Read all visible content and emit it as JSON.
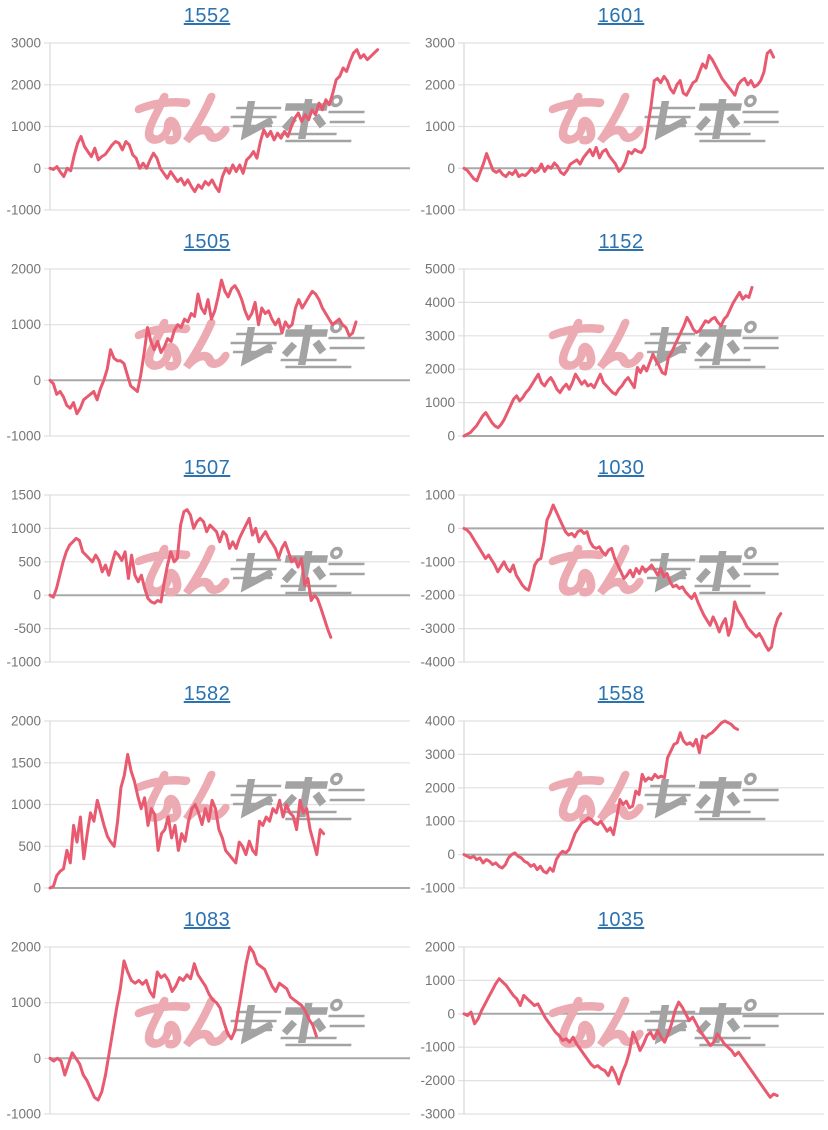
{
  "page": {
    "background": "#ffffff"
  },
  "watermark": {
    "text": "みんレポ",
    "pink_color": "#ecaab2",
    "gray_color": "#a3a3a3"
  },
  "style": {
    "line_color": "#e85a70",
    "title_color": "#2a72b0",
    "grid_color": "#e0e0e0",
    "zero_line_color": "#a8a8a8",
    "axis_color": "#d8d8d8",
    "tick_label_color": "#757575"
  },
  "chart_data": [
    {
      "type": "line",
      "title": "1552",
      "ylim": [
        -1000,
        3000
      ],
      "yticks": [
        3000,
        2000,
        1000,
        0,
        -1000
      ],
      "span": 0.91,
      "grid": true,
      "x_axis_labels": false,
      "values": [
        0,
        -30,
        40,
        -90,
        -200,
        0,
        -60,
        300,
        600,
        760,
        520,
        400,
        280,
        480,
        200,
        280,
        330,
        440,
        560,
        640,
        600,
        440,
        640,
        560,
        320,
        240,
        0,
        120,
        0,
        200,
        360,
        240,
        0,
        -120,
        -240,
        -80,
        -200,
        -320,
        -240,
        -400,
        -280,
        -440,
        -560,
        -400,
        -480,
        -320,
        -400,
        -280,
        -440,
        -560,
        -200,
        0,
        -120,
        80,
        -80,
        80,
        -120,
        200,
        280,
        400,
        240,
        640,
        920,
        760,
        880,
        680,
        840,
        720,
        880,
        760,
        1000,
        1200,
        1320,
        1120,
        1280,
        1160,
        1400,
        1280,
        1560,
        1400,
        1640,
        1520,
        1800,
        2120,
        2200,
        2400,
        2320,
        2560,
        2760,
        2840,
        2640,
        2720,
        2600,
        2680,
        2760,
        2840
      ]
    },
    {
      "type": "line",
      "title": "1601",
      "ylim": [
        -1000,
        3000
      ],
      "yticks": [
        3000,
        2000,
        1000,
        0,
        -1000
      ],
      "span": 0.86,
      "grid": true,
      "x_axis_labels": false,
      "values": [
        0,
        -50,
        -150,
        -250,
        -300,
        -100,
        100,
        350,
        150,
        -50,
        -100,
        -50,
        -150,
        -200,
        -100,
        -150,
        -50,
        -200,
        -150,
        -175,
        -100,
        0,
        -100,
        -50,
        100,
        -75,
        50,
        0,
        125,
        50,
        -100,
        -150,
        -50,
        100,
        150,
        200,
        100,
        250,
        350,
        450,
        300,
        500,
        250,
        400,
        450,
        300,
        200,
        100,
        -75,
        0,
        150,
        400,
        350,
        450,
        400,
        375,
        500,
        1000,
        1500,
        2100,
        2150,
        2050,
        2200,
        2100,
        1900,
        1800,
        2000,
        2100,
        1800,
        1750,
        1900,
        2050,
        2100,
        2300,
        2500,
        2400,
        2700,
        2600,
        2450,
        2300,
        2150,
        2050,
        1950,
        1850,
        1750,
        2000,
        2100,
        2150,
        2000,
        2100,
        1950,
        2000,
        2100,
        2300,
        2750,
        2820,
        2660
      ]
    },
    {
      "type": "line",
      "title": "1505",
      "ylim": [
        -1000,
        2000
      ],
      "yticks": [
        2000,
        1000,
        0,
        -1000
      ],
      "span": 0.85,
      "grid": true,
      "x_axis_labels": false,
      "values": [
        0,
        -60,
        -250,
        -200,
        -300,
        -450,
        -500,
        -400,
        -600,
        -500,
        -350,
        -300,
        -250,
        -200,
        -350,
        -150,
        0,
        200,
        550,
        400,
        350,
        350,
        300,
        100,
        -100,
        -150,
        -200,
        100,
        500,
        950,
        700,
        550,
        700,
        500,
        600,
        750,
        700,
        900,
        1000,
        950,
        1100,
        1050,
        1200,
        1150,
        1550,
        1300,
        1200,
        1450,
        1100,
        1250,
        1500,
        1800,
        1600,
        1500,
        1650,
        1700,
        1600,
        1450,
        1250,
        1100,
        1200,
        1400,
        1000,
        1300,
        1200,
        1250,
        1100,
        1000,
        1100,
        850,
        1050,
        950,
        1000,
        1300,
        1450,
        1300,
        1400,
        1500,
        1600,
        1550,
        1450,
        1300,
        1200,
        1100,
        1000,
        1050,
        1100,
        1000,
        950,
        800,
        850,
        1050
      ]
    },
    {
      "type": "line",
      "title": "1152",
      "ylim": [
        0,
        5000
      ],
      "yticks": [
        5000,
        4000,
        3000,
        2000,
        1000,
        0
      ],
      "span": 0.8,
      "grid": true,
      "x_axis_labels": false,
      "values": [
        0,
        50,
        100,
        200,
        300,
        450,
        600,
        700,
        550,
        400,
        300,
        250,
        350,
        500,
        700,
        900,
        1100,
        1200,
        1050,
        1150,
        1300,
        1400,
        1550,
        1700,
        1850,
        1600,
        1500,
        1650,
        1750,
        1600,
        1400,
        1300,
        1450,
        1550,
        1400,
        1600,
        1850,
        1700,
        1550,
        1650,
        1500,
        1550,
        1450,
        1650,
        1850,
        1600,
        1500,
        1400,
        1300,
        1250,
        1400,
        1500,
        1650,
        1750,
        1600,
        1450,
        2050,
        1900,
        2100,
        1950,
        2200,
        2450,
        2250,
        2100,
        1900,
        1850,
        2350,
        2500,
        2700,
        2900,
        3100,
        3300,
        3550,
        3400,
        3200,
        3100,
        3150,
        3300,
        3450,
        3400,
        3500,
        3550,
        3400,
        3300,
        3500,
        3600,
        3800,
        4000,
        4150,
        4300,
        4100,
        4200,
        4150,
        4450
      ]
    },
    {
      "type": "line",
      "title": "1507",
      "ylim": [
        -1000,
        1500
      ],
      "yticks": [
        1500,
        1000,
        500,
        0,
        -500,
        -1000
      ],
      "span": 0.78,
      "grid": true,
      "x_axis_labels": false,
      "values": [
        0,
        -30,
        100,
        300,
        500,
        650,
        750,
        800,
        850,
        820,
        650,
        600,
        550,
        500,
        600,
        520,
        350,
        450,
        300,
        480,
        650,
        600,
        520,
        650,
        250,
        600,
        300,
        200,
        300,
        100,
        -50,
        -100,
        -120,
        -80,
        -100,
        200,
        450,
        650,
        500,
        550,
        1050,
        1250,
        1280,
        1200,
        1000,
        1100,
        1150,
        1100,
        950,
        1050,
        1000,
        950,
        800,
        950,
        900,
        700,
        800,
        700,
        850,
        950,
        1050,
        1150,
        900,
        1000,
        800,
        880,
        950,
        850,
        780,
        700,
        560,
        700,
        790,
        650,
        500,
        550,
        420,
        550,
        150,
        250,
        -80,
        0,
        -60,
        -200,
        -350,
        -500,
        -630
      ]
    },
    {
      "type": "line",
      "title": "1030",
      "ylim": [
        -4000,
        1000
      ],
      "yticks": [
        1000,
        0,
        -1000,
        -2000,
        -3000,
        -4000
      ],
      "span": 0.88,
      "grid": true,
      "x_axis_labels": false,
      "values": [
        0,
        -50,
        -150,
        -300,
        -450,
        -600,
        -750,
        -900,
        -800,
        -950,
        -1100,
        -1300,
        -1150,
        -1000,
        -1200,
        -1300,
        -1100,
        -1400,
        -1550,
        -1700,
        -1800,
        -1850,
        -1500,
        -1100,
        -950,
        -900,
        -400,
        250,
        450,
        700,
        500,
        300,
        100,
        -100,
        -200,
        -150,
        -250,
        -100,
        -50,
        -150,
        -100,
        -400,
        -550,
        -600,
        -550,
        -700,
        -800,
        -650,
        -600,
        -900,
        -1100,
        -1300,
        -1500,
        -1400,
        -1250,
        -1450,
        -1200,
        -1350,
        -1150,
        -1300,
        -1200,
        -1100,
        -1250,
        -1400,
        -1200,
        -1450,
        -1350,
        -1600,
        -1750,
        -1700,
        -1800,
        -1750,
        -1900,
        -2000,
        -2100,
        -1950,
        -2200,
        -2400,
        -2600,
        -2750,
        -2900,
        -2650,
        -2850,
        -3100,
        -2850,
        -2700,
        -3200,
        -2900,
        -2200,
        -2450,
        -2600,
        -2750,
        -2950,
        -3050,
        -3150,
        -3250,
        -3150,
        -3300,
        -3500,
        -3650,
        -3550,
        -3000,
        -2700,
        -2550
      ]
    },
    {
      "type": "line",
      "title": "1582",
      "ylim": [
        0,
        2000
      ],
      "yticks": [
        2000,
        1500,
        1000,
        500,
        0
      ],
      "span": 0.76,
      "grid": true,
      "x_axis_labels": false,
      "values": [
        0,
        20,
        150,
        200,
        230,
        450,
        300,
        750,
        550,
        850,
        350,
        650,
        900,
        800,
        1050,
        900,
        750,
        620,
        550,
        500,
        800,
        1200,
        1350,
        1600,
        1400,
        1280,
        1100,
        950,
        1080,
        750,
        950,
        880,
        450,
        650,
        700,
        850,
        600,
        750,
        450,
        650,
        560,
        800,
        950,
        1000,
        900,
        760,
        950,
        800,
        1050,
        950,
        700,
        600,
        450,
        400,
        350,
        300,
        550,
        500,
        400,
        560,
        450,
        400,
        800,
        750,
        850,
        800,
        950,
        900,
        1050,
        850,
        1000,
        900,
        860,
        700,
        1050,
        900,
        950,
        700,
        550,
        400,
        700,
        650
      ]
    },
    {
      "type": "line",
      "title": "1558",
      "ylim": [
        -1000,
        4000
      ],
      "yticks": [
        4000,
        3000,
        2000,
        1000,
        0,
        -1000
      ],
      "span": 0.76,
      "grid": true,
      "x_axis_labels": false,
      "values": [
        0,
        -50,
        -100,
        -50,
        -150,
        -100,
        -250,
        -150,
        -200,
        -300,
        -250,
        -350,
        -400,
        -300,
        -100,
        0,
        50,
        -50,
        -100,
        -200,
        -250,
        -350,
        -300,
        -450,
        -350,
        -500,
        -550,
        -400,
        -500,
        -150,
        0,
        100,
        50,
        150,
        400,
        650,
        800,
        950,
        1000,
        1100,
        1050,
        950,
        900,
        1000,
        850,
        700,
        800,
        600,
        1100,
        1650,
        1500,
        1600,
        1400,
        1450,
        1900,
        1800,
        2400,
        2200,
        2300,
        2250,
        2400,
        2300,
        2350,
        2300,
        2900,
        3100,
        3300,
        3350,
        3650,
        3400,
        3300,
        3350,
        3250,
        3450,
        3050,
        3550,
        3500,
        3600,
        3650,
        3750,
        3850,
        3950,
        4000,
        3950,
        3900,
        3800,
        3750
      ]
    },
    {
      "type": "line",
      "title": "1083",
      "ylim": [
        -1000,
        2000
      ],
      "yticks": [
        2000,
        1000,
        0,
        -1000
      ],
      "span": 0.74,
      "grid": true,
      "x_axis_labels": false,
      "values": [
        0,
        -50,
        0,
        -50,
        -300,
        -100,
        100,
        0,
        -100,
        -300,
        -400,
        -550,
        -700,
        -750,
        -600,
        -300,
        100,
        500,
        900,
        1250,
        1750,
        1550,
        1400,
        1350,
        1400,
        1330,
        1400,
        1200,
        1100,
        1550,
        1450,
        1500,
        1400,
        1200,
        1300,
        1450,
        1400,
        1500,
        1430,
        1700,
        1500,
        1400,
        1300,
        1150,
        1050,
        1000,
        900,
        650,
        450,
        350,
        500,
        900,
        1300,
        1700,
        2000,
        1900,
        1700,
        1650,
        1600,
        1450,
        1300,
        1200,
        1350,
        1300,
        1250,
        1100,
        1050,
        1000,
        950,
        850,
        700,
        600,
        400
      ]
    },
    {
      "type": "line",
      "title": "1035",
      "ylim": [
        -3000,
        2000
      ],
      "yticks": [
        2000,
        1000,
        0,
        -1000,
        -2000,
        -3000
      ],
      "span": 0.87,
      "grid": true,
      "x_axis_labels": false,
      "values": [
        0,
        -50,
        50,
        -300,
        -150,
        100,
        300,
        500,
        700,
        900,
        1050,
        950,
        850,
        700,
        550,
        450,
        250,
        550,
        450,
        350,
        250,
        300,
        100,
        -100,
        -250,
        -400,
        -550,
        -650,
        -800,
        -750,
        -850,
        -700,
        -900,
        -1050,
        -1200,
        -1350,
        -1500,
        -1600,
        -1550,
        -1650,
        -1700,
        -1850,
        -1600,
        -1800,
        -2100,
        -1750,
        -1500,
        -1150,
        -550,
        -800,
        -1100,
        -900,
        -650,
        -550,
        -750,
        -500,
        -700,
        -850,
        -600,
        -300,
        100,
        350,
        200,
        0,
        -200,
        -100,
        -300,
        -500,
        -650,
        -800,
        -950,
        -850,
        -600,
        -750,
        -900,
        -1000,
        -1100,
        -1250,
        -1150,
        -1300,
        -1450,
        -1600,
        -1750,
        -1900,
        -2050,
        -2200,
        -2350,
        -2500,
        -2400,
        -2450
      ]
    }
  ]
}
